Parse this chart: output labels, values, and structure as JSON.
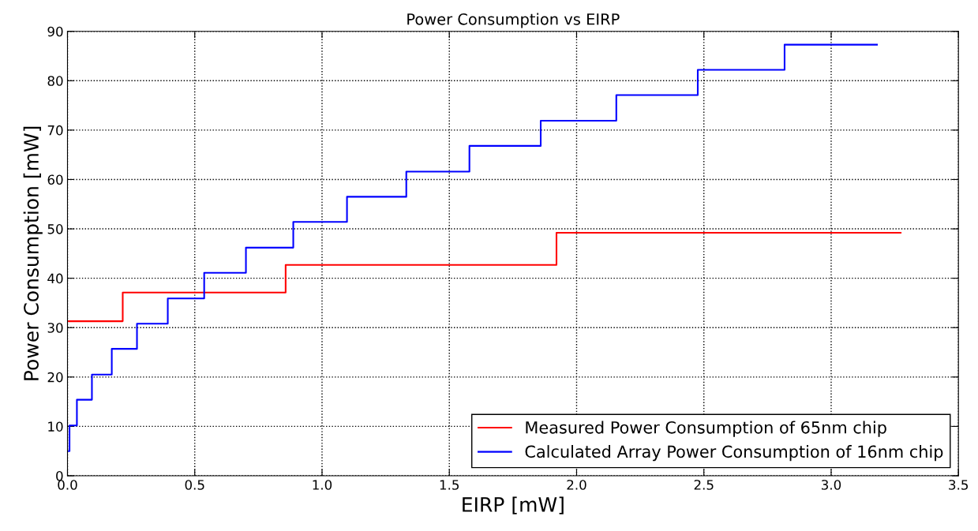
{
  "chart_data": {
    "type": "step",
    "title": "Power Consumption vs EIRP",
    "xlabel": "EIRP [mW]",
    "ylabel": "Power Consumption [mW]",
    "series": [
      {
        "name": "Measured Power Consumption of 65nm chip",
        "color": "#ff0000",
        "x": [
          0.005,
          0.217,
          0.857,
          1.921,
          3.273
        ],
        "values": [
          31.3,
          37.1,
          42.7,
          49.2,
          49.2
        ]
      },
      {
        "name": "Calculated Array Power Consumption of 16nm chip",
        "color": "#0000ff",
        "x": [
          0.005,
          0.008,
          0.037,
          0.096,
          0.174,
          0.273,
          0.394,
          0.537,
          0.701,
          0.887,
          1.098,
          1.331,
          1.579,
          1.859,
          2.156,
          2.476,
          2.817,
          3.18
        ],
        "values": [
          5.0,
          10.2,
          15.4,
          20.5,
          25.7,
          30.8,
          35.9,
          41.1,
          46.2,
          51.4,
          56.5,
          61.6,
          66.8,
          71.9,
          77.1,
          82.2,
          87.3,
          87.3
        ]
      }
    ],
    "xlim": [
      0,
      3.5
    ],
    "xticks": [
      {
        "value": 0,
        "label": "0.0"
      },
      0.5,
      {
        "value": 1,
        "label": "1.0"
      },
      1.5,
      {
        "value": 2,
        "label": "2.0"
      },
      2.5,
      {
        "value": 3,
        "label": "3.0"
      },
      3.5
    ],
    "ylim": [
      0,
      90
    ],
    "yticks": [
      0,
      10,
      20,
      30,
      40,
      50,
      60,
      70,
      80,
      90
    ],
    "grid": true,
    "line_style": "solid",
    "legend": "bottom right"
  }
}
